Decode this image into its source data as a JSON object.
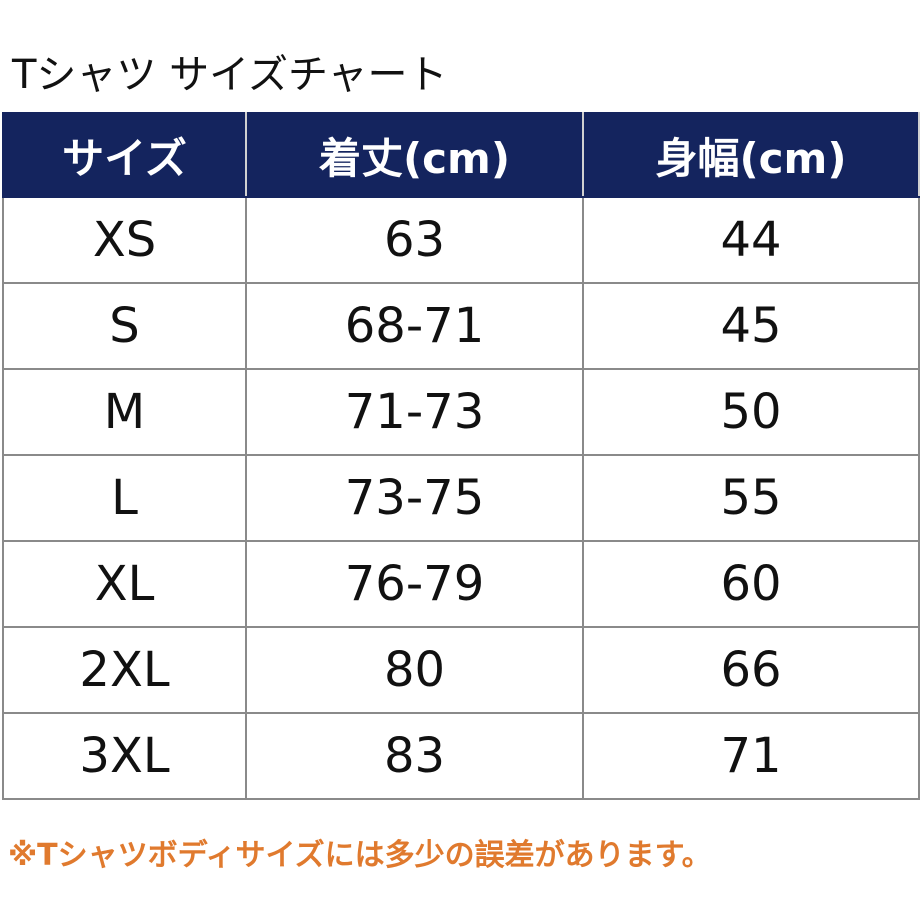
{
  "header": {
    "title": "Tシャツ サイズチャート"
  },
  "table": {
    "columns": [
      "サイズ",
      "着丈(cm)",
      "身幅(cm)"
    ],
    "rows": [
      [
        "XS",
        "63",
        "44"
      ],
      [
        "S",
        "68-71",
        "45"
      ],
      [
        "M",
        "71-73",
        "50"
      ],
      [
        "L",
        "73-75",
        "55"
      ],
      [
        "XL",
        "76-79",
        "60"
      ],
      [
        "2XL",
        "80",
        "66"
      ],
      [
        "3XL",
        "83",
        "71"
      ]
    ]
  },
  "footnote": "※Tシャツボディサイズには多少の誤差があります。"
}
